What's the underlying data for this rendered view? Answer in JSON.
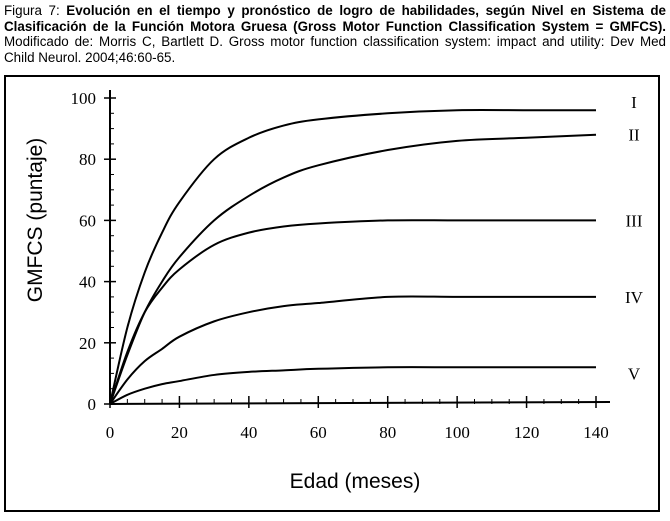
{
  "caption": {
    "prefix": "Figura 7: ",
    "bold": "Evolución en el tiempo y  pronóstico de logro  de habilidades, según  Nivel en Sistema de Clasificación de la Función Motora Gruesa (Gross Motor Function Classification System = GMFCS).",
    "rest": " Modificado de: Morris C, Bartlett D. Gross motor function classification system: impact and utility: Dev Med Child Neurol. 2004;46:60-65."
  },
  "chart_data": {
    "type": "line",
    "xlabel": "Edad (meses)",
    "ylabel": "GMFCS (puntaje)",
    "xlim": [
      0,
      140
    ],
    "ylim": [
      0,
      100
    ],
    "xticks": [
      0,
      20,
      40,
      60,
      80,
      100,
      120,
      140
    ],
    "yticks": [
      0,
      20,
      40,
      60,
      80,
      100
    ],
    "grid": false,
    "legend": "labels at line ends",
    "series": [
      {
        "name": "I",
        "x": [
          0,
          5,
          10,
          15,
          20,
          30,
          40,
          50,
          60,
          80,
          100,
          120,
          140
        ],
        "y": [
          0,
          25,
          43,
          56,
          66,
          80,
          87,
          91,
          93,
          95,
          96,
          96,
          96
        ]
      },
      {
        "name": "II",
        "x": [
          0,
          5,
          10,
          15,
          20,
          30,
          40,
          50,
          60,
          80,
          100,
          120,
          140
        ],
        "y": [
          0,
          16,
          30,
          40,
          48,
          60,
          68,
          74,
          78,
          83,
          86,
          87,
          88
        ]
      },
      {
        "name": "III",
        "x": [
          0,
          5,
          10,
          15,
          20,
          30,
          40,
          50,
          60,
          80,
          100,
          120,
          140
        ],
        "y": [
          0,
          17,
          30,
          38,
          44,
          52,
          56,
          58,
          59,
          60,
          60,
          60,
          60
        ]
      },
      {
        "name": "IV",
        "x": [
          0,
          5,
          10,
          15,
          20,
          30,
          40,
          50,
          60,
          80,
          100,
          120,
          140
        ],
        "y": [
          0,
          8,
          14,
          18,
          22,
          27,
          30,
          32,
          33,
          35,
          35,
          35,
          35
        ]
      },
      {
        "name": "V",
        "x": [
          0,
          5,
          10,
          15,
          20,
          30,
          40,
          50,
          60,
          80,
          100,
          120,
          140
        ],
        "y": [
          0,
          3,
          5,
          6.5,
          7.5,
          9.5,
          10.5,
          11,
          11.5,
          12,
          12,
          12,
          12
        ]
      }
    ]
  }
}
